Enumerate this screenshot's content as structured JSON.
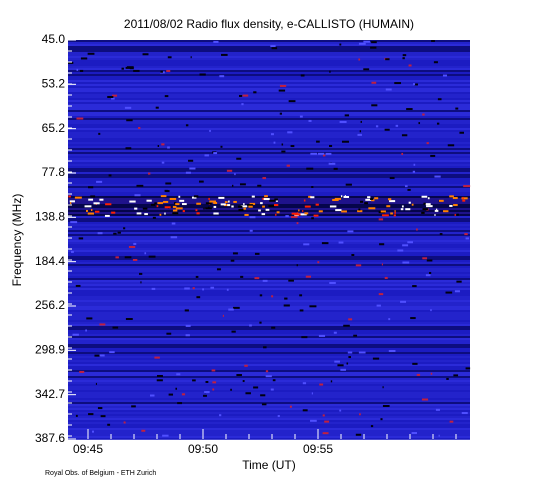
{
  "chart_data": {
    "type": "spectrogram",
    "title": "2011/08/02  Radio flux density, e-CALLISTO (HUMAIN)",
    "xlabel": "Time (UT)",
    "ylabel": "Frequency (MHz)",
    "footer": "Royal Obs. of Belgium - ETH Zurich",
    "xticks": [
      "09:45",
      "09:50",
      "09:55"
    ],
    "yticks": [
      {
        "value": 45,
        "label": "45.0"
      },
      {
        "value": 53.2,
        "label": "53.2"
      },
      {
        "value": 65.2,
        "label": "65.2"
      },
      {
        "value": 77.8,
        "label": "77.8"
      },
      {
        "value": 138.8,
        "label": "138.8"
      },
      {
        "value": 184.4,
        "label": "184.4"
      },
      {
        "value": 256.2,
        "label": "256.2"
      },
      {
        "value": 298.9,
        "label": "298.9"
      },
      {
        "value": 342.7,
        "label": "342.7"
      },
      {
        "value": 387.6,
        "label": "387.6"
      }
    ]
  }
}
